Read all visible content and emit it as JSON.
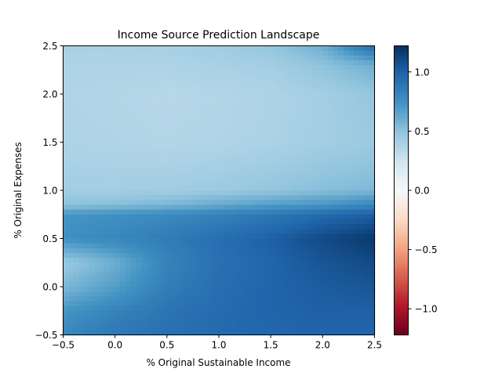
{
  "chart_data": {
    "type": "heatmap",
    "title": "Income Source Prediction Landscape",
    "xlabel": "% Original Sustainable Income",
    "ylabel": "% Original Expenses",
    "xlim": [
      -0.5,
      2.5
    ],
    "ylim": [
      -0.5,
      2.5
    ],
    "x_ticks": [
      -0.5,
      0.0,
      0.5,
      1.0,
      1.5,
      2.0,
      2.5
    ],
    "y_ticks": [
      -0.5,
      0.0,
      0.5,
      1.0,
      1.5,
      2.0,
      2.5
    ],
    "x_tick_labels": [
      "−0.5",
      "0.0",
      "0.5",
      "1.0",
      "1.5",
      "2.0",
      "2.5"
    ],
    "y_tick_labels": [
      "−0.5",
      "0.0",
      "0.5",
      "1.0",
      "1.5",
      "2.0",
      "2.5"
    ],
    "colormap": "RdBu",
    "color_range": [
      -1.22,
      1.22
    ],
    "colorbar_ticks": [
      -1.0,
      -0.5,
      0.0,
      0.5,
      1.0
    ],
    "colorbar_tick_labels": [
      "−1.0",
      "−0.5",
      "0.0",
      "0.5",
      "1.0"
    ],
    "grid": false,
    "x": [
      -0.5,
      0.0,
      0.5,
      1.0,
      1.5,
      2.0,
      2.5
    ],
    "y": [
      -0.5,
      -0.25,
      0.0,
      0.25,
      0.5,
      0.75,
      0.85,
      1.0,
      1.5,
      2.0,
      2.3,
      2.5
    ],
    "z": [
      [
        0.8,
        0.88,
        0.92,
        0.95,
        0.97,
        0.98,
        0.98
      ],
      [
        0.72,
        0.82,
        0.9,
        0.95,
        0.98,
        1.0,
        1.0
      ],
      [
        0.55,
        0.68,
        0.85,
        0.93,
        0.98,
        1.02,
        1.05
      ],
      [
        0.45,
        0.6,
        0.82,
        0.92,
        0.98,
        1.05,
        1.1
      ],
      [
        0.75,
        0.8,
        0.86,
        0.93,
        1.0,
        1.1,
        1.18
      ],
      [
        0.72,
        0.75,
        0.78,
        0.83,
        0.88,
        0.95,
        1.0
      ],
      [
        0.5,
        0.52,
        0.56,
        0.62,
        0.68,
        0.72,
        0.8
      ],
      [
        0.42,
        0.42,
        0.43,
        0.45,
        0.48,
        0.52,
        0.55
      ],
      [
        0.38,
        0.37,
        0.36,
        0.37,
        0.39,
        0.42,
        0.45
      ],
      [
        0.37,
        0.36,
        0.35,
        0.36,
        0.38,
        0.42,
        0.48
      ],
      [
        0.38,
        0.38,
        0.38,
        0.4,
        0.42,
        0.5,
        0.6
      ],
      [
        0.4,
        0.4,
        0.41,
        0.43,
        0.48,
        0.6,
        0.95
      ]
    ]
  }
}
